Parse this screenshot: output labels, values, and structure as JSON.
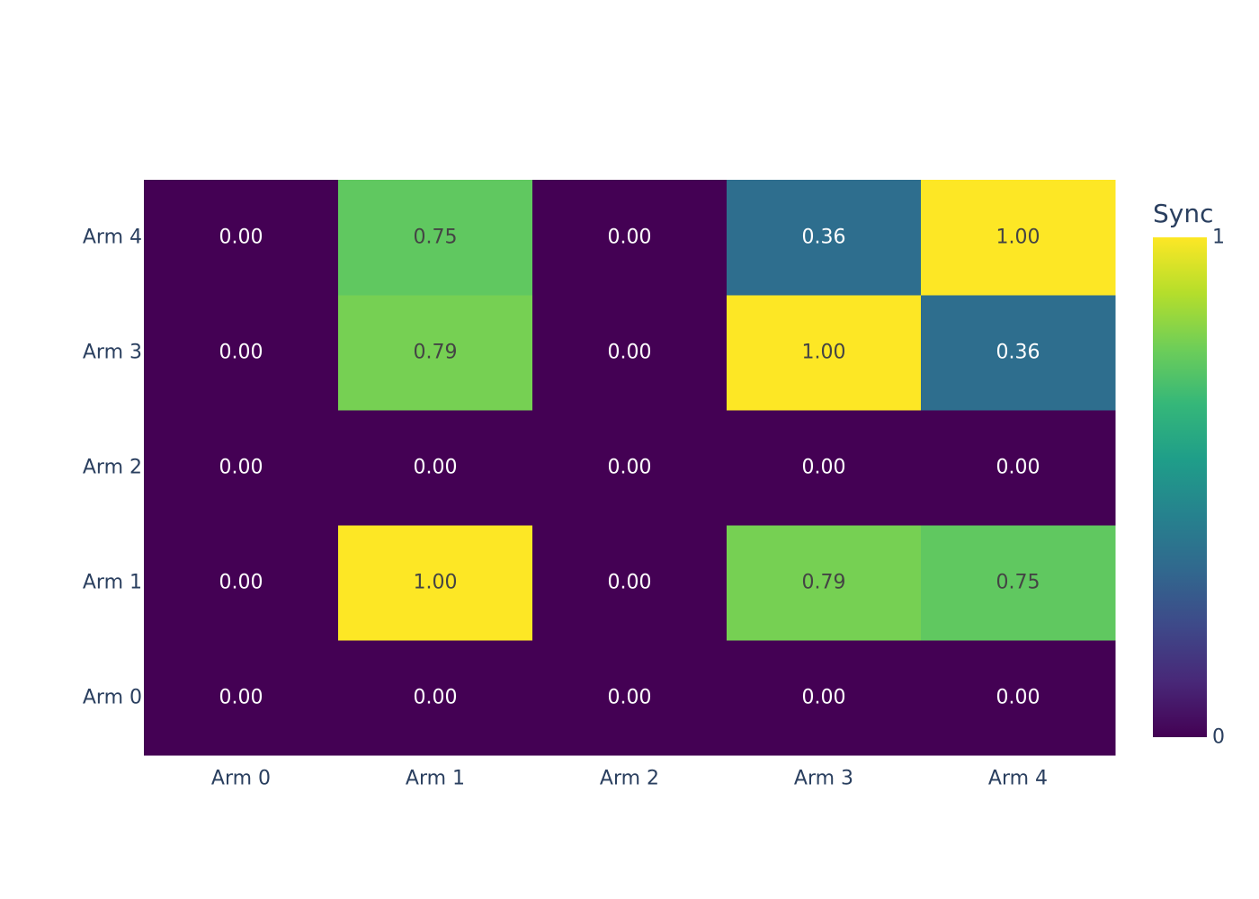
{
  "chart_data": {
    "type": "heatmap",
    "x_categories": [
      "Arm 0",
      "Arm 1",
      "Arm 2",
      "Arm 3",
      "Arm 4"
    ],
    "y_categories": [
      "Arm 0",
      "Arm 1",
      "Arm 2",
      "Arm 3",
      "Arm 4"
    ],
    "z": [
      [
        0.0,
        0.0,
        0.0,
        0.0,
        0.0
      ],
      [
        0.0,
        1.0,
        0.0,
        0.79,
        0.75
      ],
      [
        0.0,
        0.0,
        0.0,
        0.0,
        0.0
      ],
      [
        0.0,
        0.79,
        0.0,
        1.0,
        0.36
      ],
      [
        0.0,
        0.75,
        0.0,
        0.36,
        1.0
      ]
    ],
    "text_format": "0.00",
    "colorscale": "Viridis",
    "colorscale_stops": [
      "#440154",
      "#482878",
      "#3e4989",
      "#31688e",
      "#26828e",
      "#1f9e89",
      "#35b779",
      "#6ece58",
      "#b5de2b",
      "#fde725"
    ],
    "zmin": 0,
    "zmax": 1,
    "colorbar": {
      "title": "Sync",
      "tick_min_label": "0",
      "tick_max_label": "1"
    },
    "title": "",
    "xlabel": "",
    "ylabel": "",
    "text_color_dark": "#444444",
    "text_color_light": "#ffffff",
    "axis_text_color": "#2a3f5f"
  }
}
